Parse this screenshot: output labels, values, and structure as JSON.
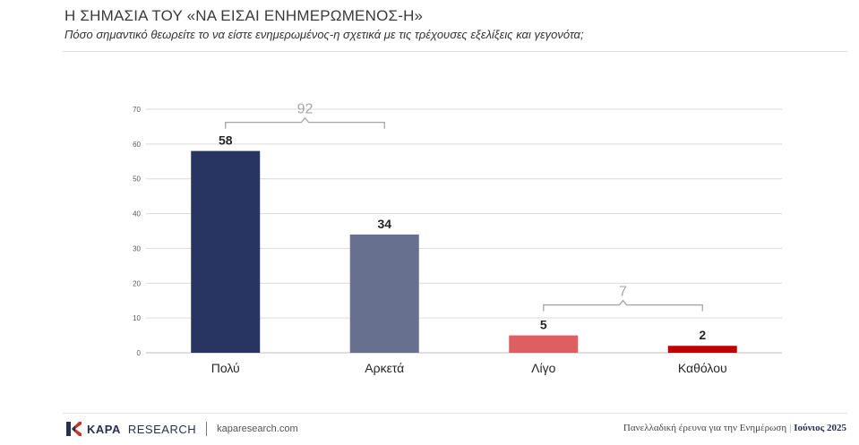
{
  "header": {
    "title": "Η ΣΗΜΑΣΙΑ ΤΟΥ «ΝΑ ΕΙΣΑΙ ΕΝΗΜΕΡΩΜΕΝΟΣ-Η»",
    "subtitle": "Πόσο σημαντικό θεωρείτε το να είστε ενημερωμένος-η σχετικά με τις τρέχουσες εξελίξεις και γεγονότα;"
  },
  "chart_data": {
    "type": "bar",
    "title": "Η ΣΗΜΑΣΙΑ ΤΟΥ «ΝΑ ΕΙΣΑΙ ΕΝΗΜΕΡΩΜΕΝΟΣ-Η»",
    "categories": [
      "Πολύ",
      "Αρκετά",
      "Λίγο",
      "Καθόλου"
    ],
    "values": [
      58,
      34,
      5,
      2
    ],
    "data_labels": [
      "58",
      "34",
      "5",
      "2"
    ],
    "colors": [
      "#283461",
      "#67718f",
      "#de5f62",
      "#c00000"
    ],
    "ylim": [
      0,
      70
    ],
    "yticks": [
      0,
      10,
      20,
      30,
      40,
      50,
      60,
      70
    ],
    "ytick_labels": [
      "0",
      "10",
      "20",
      "30",
      "40",
      "50",
      "60",
      "70"
    ],
    "grid": true,
    "xlabel": "",
    "ylabel": "",
    "annotations": [
      {
        "label": "92",
        "from": 0,
        "to": 1
      },
      {
        "label": "7",
        "from": 2,
        "to": 3
      }
    ]
  },
  "footer": {
    "brand_bold": "KAPA",
    "brand_regular": "RESEARCH",
    "url": "kaparesearch.com",
    "survey": "Πανελλαδική έρευνα για την Ενημέρωση",
    "separator": "|",
    "date": "Ιούνιος 2025"
  },
  "colors": {
    "axis_text": "#595959",
    "grid": "#d9d9d9",
    "bracket": "#a6a6a6",
    "label": "#262626"
  },
  "icons": {
    "logo": "kapa-k-logo-icon"
  }
}
